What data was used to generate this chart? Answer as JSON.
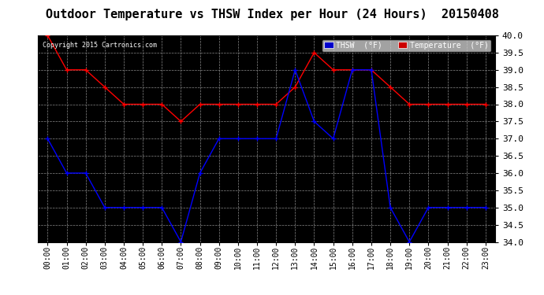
{
  "title": "Outdoor Temperature vs THSW Index per Hour (24 Hours)  20150408",
  "copyright": "Copyright 2015 Cartronics.com",
  "ylim": [
    34.0,
    40.0
  ],
  "yticks": [
    34.0,
    34.5,
    35.0,
    35.5,
    36.0,
    36.5,
    37.0,
    37.5,
    38.0,
    38.5,
    39.0,
    39.5,
    40.0
  ],
  "hours": [
    0,
    1,
    2,
    3,
    4,
    5,
    6,
    7,
    8,
    9,
    10,
    11,
    12,
    13,
    14,
    15,
    16,
    17,
    18,
    19,
    20,
    21,
    22,
    23
  ],
  "temperature": [
    40.0,
    39.0,
    39.0,
    38.5,
    38.0,
    38.0,
    38.0,
    37.5,
    38.0,
    38.0,
    38.0,
    38.0,
    38.0,
    38.5,
    39.5,
    39.0,
    39.0,
    39.0,
    38.5,
    38.0,
    38.0,
    38.0,
    38.0,
    38.0
  ],
  "thsw": [
    37.0,
    36.0,
    36.0,
    35.0,
    35.0,
    35.0,
    35.0,
    34.0,
    36.0,
    37.0,
    37.0,
    37.0,
    37.0,
    39.0,
    37.5,
    37.0,
    39.0,
    39.0,
    35.0,
    34.0,
    35.0,
    35.0,
    35.0,
    35.0
  ],
  "temp_color": "#ff0000",
  "thsw_color": "#0000ff",
  "plot_bg_color": "#000000",
  "fig_bg_color": "#ffffff",
  "grid_color": "#555555",
  "title_fontsize": 11,
  "tick_fontsize": 7,
  "legend_thsw_bg": "#0000cc",
  "legend_temp_bg": "#cc0000"
}
